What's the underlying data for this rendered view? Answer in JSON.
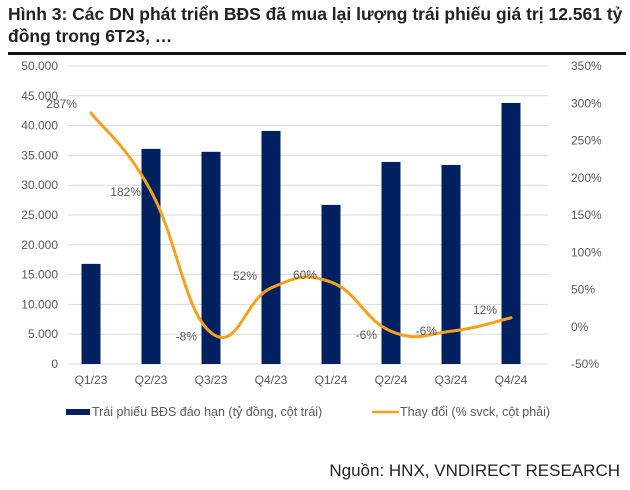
{
  "header": {
    "title": "Hình 3: Các DN phát triển BĐS đã mua lại lượng trái phiếu giá trị 12.561 tỷ đồng trong 6T23, …"
  },
  "footer": {
    "source": "Nguồn: HNX, VNDIRECT RESEARCH"
  },
  "colors": {
    "bar": "#002060",
    "line": "#F4A11C",
    "grid": "#D9D9D9",
    "text": "#595959"
  },
  "chart_data": {
    "type": "bar",
    "title": "Hình 3: Các DN phát triển BĐS đã mua lại lượng trái phiếu giá trị 12.561 tỷ đồng trong 6T23, …",
    "categories": [
      "Q1/23",
      "Q2/23",
      "Q3/23",
      "Q4/23",
      "Q1/24",
      "Q2/24",
      "Q3/24",
      "Q4/24"
    ],
    "series": [
      {
        "name": "Trái phiếu BĐS đáo hạn (tỷ đồng, cột trái)",
        "type": "bar",
        "axis": "left",
        "values": [
          16800,
          36100,
          35600,
          39100,
          26700,
          33900,
          33400,
          43800
        ]
      },
      {
        "name": "Thay đổi (% svck, cột phải)",
        "type": "line",
        "axis": "right",
        "smooth": true,
        "values": [
          287,
          182,
          -8,
          52,
          60,
          -6,
          -6,
          12
        ],
        "labels": [
          "287%",
          "182%",
          "-8%",
          "52%",
          "60%",
          "-6%",
          "-6%",
          "12%"
        ]
      }
    ],
    "y_left": {
      "ylim": [
        0,
        50000
      ],
      "ticks": [
        "0",
        "5.000",
        "10.000",
        "15.000",
        "20.000",
        "25.000",
        "30.000",
        "35.000",
        "40.000",
        "45.000",
        "50.000"
      ]
    },
    "y_right": {
      "ylim": [
        -50,
        350
      ],
      "ticks": [
        "-50%",
        "0%",
        "50%",
        "100%",
        "150%",
        "200%",
        "250%",
        "300%",
        "350%"
      ]
    },
    "xlabel": "",
    "ylabel": "",
    "grid": true,
    "legend_position": "bottom"
  }
}
